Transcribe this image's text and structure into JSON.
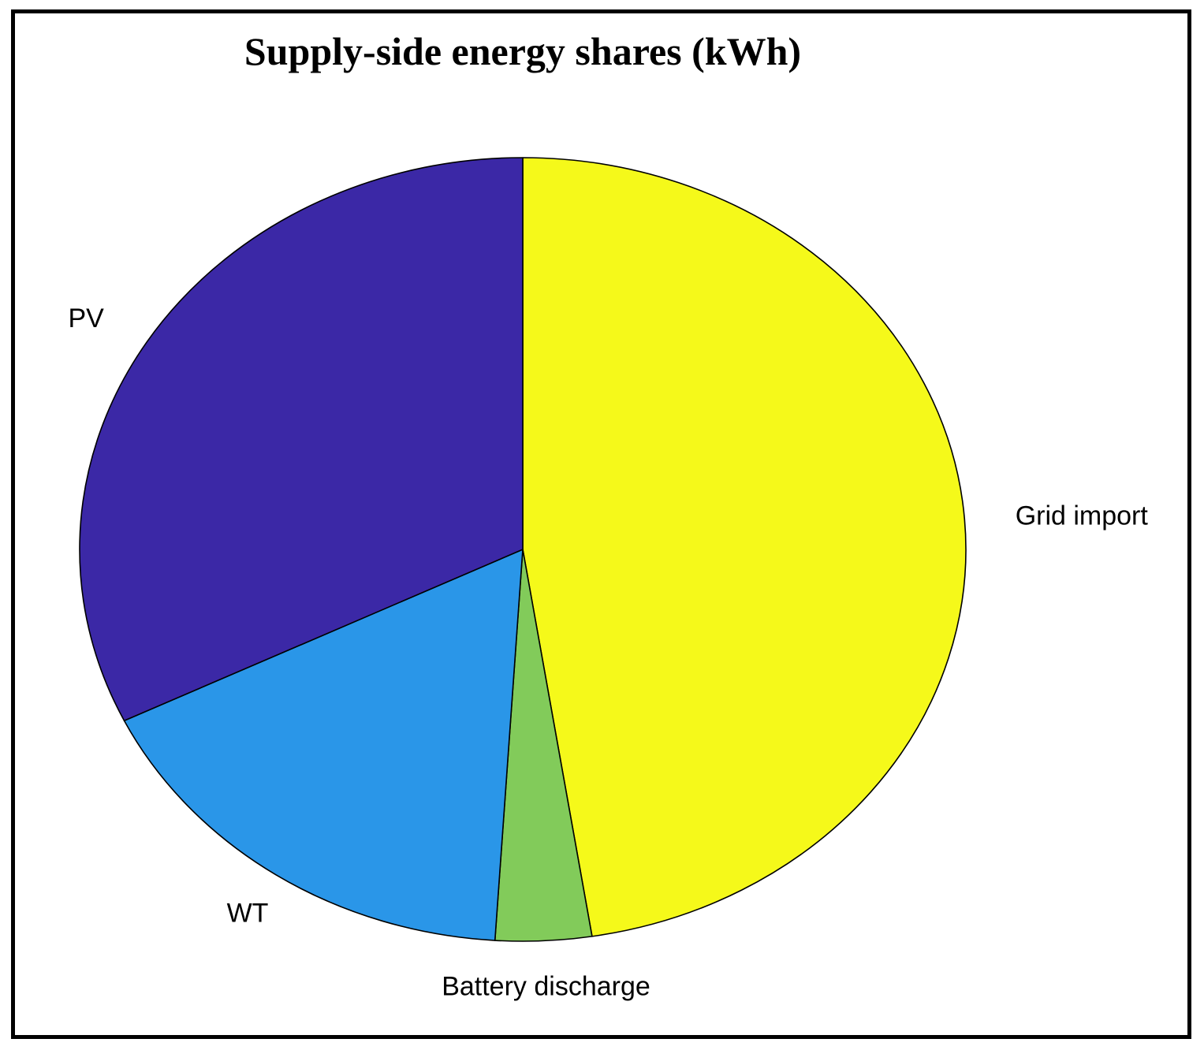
{
  "chart_data": {
    "type": "pie",
    "title": "Supply-side energy shares (kWh)",
    "start_angle_deg": 0,
    "direction": "clockwise",
    "slices": [
      {
        "label": "Grid import",
        "value": 47.5,
        "color": "#F5F91A"
      },
      {
        "label": "Battery discharge",
        "value": 3.5,
        "color": "#82CB5A"
      },
      {
        "label": "WT",
        "value": 16.8,
        "color": "#2A96E8"
      },
      {
        "label": "PV",
        "value": 32.2,
        "color": "#3B28A6"
      }
    ],
    "edge_color": "#000000"
  }
}
